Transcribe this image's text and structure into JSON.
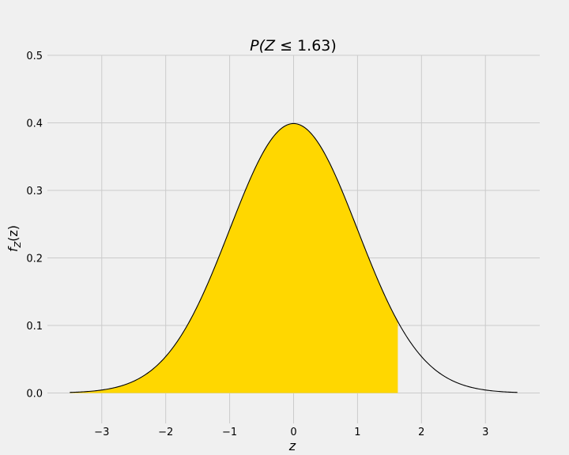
{
  "chart_data": {
    "type": "area",
    "title": {
      "prefix": "P(",
      "var": "Z",
      "op": " ≤ ",
      "value": "1.63",
      "suffix": ")"
    },
    "xlabel": "z",
    "ylabel": {
      "f": "f",
      "sub": "Z",
      "arg": "(z)"
    },
    "xlim": [
      -3.85,
      3.85
    ],
    "ylim": [
      -0.045,
      0.5
    ],
    "xticks": [
      -3,
      -2,
      -1,
      0,
      1,
      2,
      3
    ],
    "xtick_labels": [
      "−3",
      "−2",
      "−1",
      "0",
      "1",
      "2",
      "3"
    ],
    "yticks": [
      0.0,
      0.1,
      0.2,
      0.3,
      0.4,
      0.5
    ],
    "ytick_labels": [
      "0.0",
      "0.1",
      "0.2",
      "0.3",
      "0.4",
      "0.5"
    ],
    "curve": {
      "distribution": "standard normal pdf",
      "x_min": -3.5,
      "x_max": 3.5,
      "color": "#000000"
    },
    "shaded_region": {
      "x_from": -3.5,
      "x_to": 1.63,
      "color": "#ffd700"
    },
    "grid": true,
    "grid_color": "#cbcbcb",
    "background": "#f0f0f0"
  }
}
